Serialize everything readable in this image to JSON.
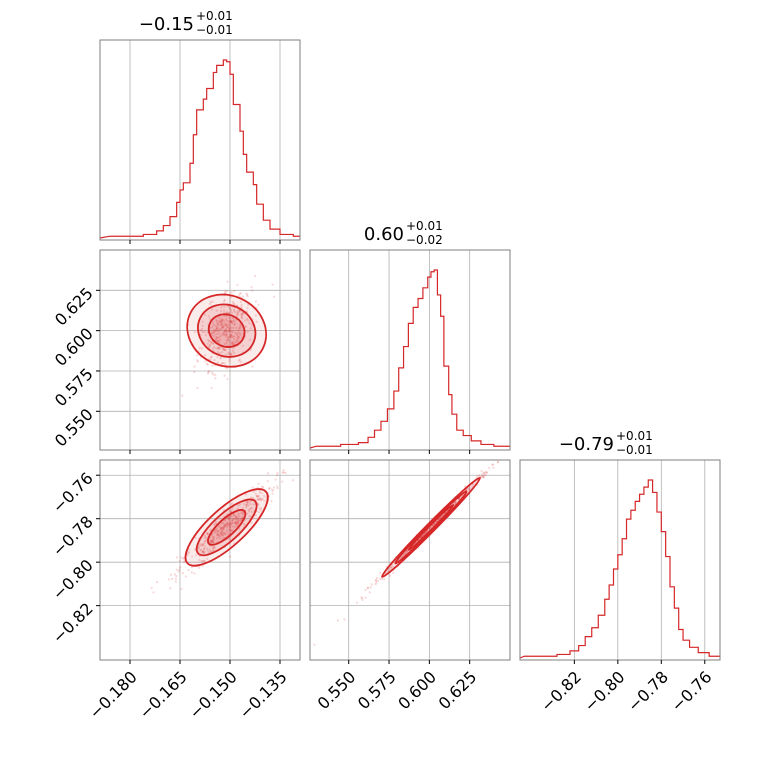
{
  "chart_data": {
    "type": "corner",
    "color": "#d62728",
    "parameters": [
      {
        "title": {
          "median": "−0.15",
          "upper": "+0.01",
          "lower": "−0.01"
        },
        "range": [
          -0.189,
          -0.129
        ],
        "ticks": [
          {
            "v": -0.18,
            "label": "−0.180"
          },
          {
            "v": -0.165,
            "label": "−0.165"
          },
          {
            "v": -0.15,
            "label": "−0.150"
          },
          {
            "v": -0.135,
            "label": "−0.135"
          }
        ],
        "hist": [
          {
            "x": -0.186,
            "y": 0.01
          },
          {
            "x": -0.18,
            "y": 0.01
          },
          {
            "x": -0.176,
            "y": 0.02
          },
          {
            "x": -0.172,
            "y": 0.04
          },
          {
            "x": -0.17,
            "y": 0.07
          },
          {
            "x": -0.168,
            "y": 0.12
          },
          {
            "x": -0.166,
            "y": 0.2
          },
          {
            "x": -0.165,
            "y": 0.27
          },
          {
            "x": -0.164,
            "y": 0.31
          },
          {
            "x": -0.162,
            "y": 0.42
          },
          {
            "x": -0.161,
            "y": 0.58
          },
          {
            "x": -0.16,
            "y": 0.72
          },
          {
            "x": -0.158,
            "y": 0.78
          },
          {
            "x": -0.157,
            "y": 0.84
          },
          {
            "x": -0.155,
            "y": 0.93
          },
          {
            "x": -0.154,
            "y": 0.97
          },
          {
            "x": -0.152,
            "y": 1.0
          },
          {
            "x": -0.151,
            "y": 0.99
          },
          {
            "x": -0.15,
            "y": 0.92
          },
          {
            "x": -0.149,
            "y": 0.75
          },
          {
            "x": -0.147,
            "y": 0.6
          },
          {
            "x": -0.146,
            "y": 0.47
          },
          {
            "x": -0.145,
            "y": 0.37
          },
          {
            "x": -0.143,
            "y": 0.3
          },
          {
            "x": -0.142,
            "y": 0.19
          },
          {
            "x": -0.14,
            "y": 0.1
          },
          {
            "x": -0.138,
            "y": 0.05
          },
          {
            "x": -0.135,
            "y": 0.02
          },
          {
            "x": -0.131,
            "y": 0.01
          }
        ]
      },
      {
        "title": {
          "median": "0.60",
          "upper": "+0.01",
          "lower": "−0.02"
        },
        "range": [
          0.526,
          0.65
        ],
        "ticks": [
          {
            "v": 0.55,
            "label": "0.550"
          },
          {
            "v": 0.575,
            "label": "0.575"
          },
          {
            "v": 0.6,
            "label": "0.600"
          },
          {
            "v": 0.625,
            "label": "0.625"
          }
        ],
        "hist": [
          {
            "x": 0.53,
            "y": 0.01
          },
          {
            "x": 0.545,
            "y": 0.02
          },
          {
            "x": 0.556,
            "y": 0.03
          },
          {
            "x": 0.562,
            "y": 0.06
          },
          {
            "x": 0.566,
            "y": 0.1
          },
          {
            "x": 0.57,
            "y": 0.15
          },
          {
            "x": 0.574,
            "y": 0.22
          },
          {
            "x": 0.578,
            "y": 0.32
          },
          {
            "x": 0.581,
            "y": 0.45
          },
          {
            "x": 0.584,
            "y": 0.57
          },
          {
            "x": 0.587,
            "y": 0.7
          },
          {
            "x": 0.59,
            "y": 0.79
          },
          {
            "x": 0.593,
            "y": 0.84
          },
          {
            "x": 0.596,
            "y": 0.9
          },
          {
            "x": 0.599,
            "y": 0.96
          },
          {
            "x": 0.601,
            "y": 0.99
          },
          {
            "x": 0.603,
            "y": 1.0
          },
          {
            "x": 0.605,
            "y": 0.86
          },
          {
            "x": 0.607,
            "y": 0.74
          },
          {
            "x": 0.609,
            "y": 0.46
          },
          {
            "x": 0.612,
            "y": 0.3
          },
          {
            "x": 0.614,
            "y": 0.19
          },
          {
            "x": 0.617,
            "y": 0.1
          },
          {
            "x": 0.621,
            "y": 0.07
          },
          {
            "x": 0.626,
            "y": 0.04
          },
          {
            "x": 0.632,
            "y": 0.02
          },
          {
            "x": 0.64,
            "y": 0.01
          }
        ]
      },
      {
        "title": {
          "median": "−0.79",
          "upper": "+0.01",
          "lower": "−0.01"
        },
        "range": [
          -0.845,
          -0.753
        ],
        "ticks": [
          {
            "v": -0.82,
            "label": "−0.82"
          },
          {
            "v": -0.8,
            "label": "−0.80"
          },
          {
            "v": -0.78,
            "label": "−0.78"
          },
          {
            "v": -0.76,
            "label": "−0.76"
          }
        ],
        "hist": [
          {
            "x": -0.843,
            "y": 0.01
          },
          {
            "x": -0.835,
            "y": 0.01
          },
          {
            "x": -0.828,
            "y": 0.02
          },
          {
            "x": -0.822,
            "y": 0.04
          },
          {
            "x": -0.818,
            "y": 0.07
          },
          {
            "x": -0.815,
            "y": 0.12
          },
          {
            "x": -0.812,
            "y": 0.17
          },
          {
            "x": -0.809,
            "y": 0.24
          },
          {
            "x": -0.806,
            "y": 0.33
          },
          {
            "x": -0.804,
            "y": 0.41
          },
          {
            "x": -0.802,
            "y": 0.5
          },
          {
            "x": -0.8,
            "y": 0.58
          },
          {
            "x": -0.798,
            "y": 0.67
          },
          {
            "x": -0.796,
            "y": 0.78
          },
          {
            "x": -0.794,
            "y": 0.83
          },
          {
            "x": -0.792,
            "y": 0.88
          },
          {
            "x": -0.79,
            "y": 0.92
          },
          {
            "x": -0.788,
            "y": 0.96
          },
          {
            "x": -0.786,
            "y": 1.0
          },
          {
            "x": -0.784,
            "y": 0.93
          },
          {
            "x": -0.782,
            "y": 0.82
          },
          {
            "x": -0.78,
            "y": 0.71
          },
          {
            "x": -0.778,
            "y": 0.57
          },
          {
            "x": -0.776,
            "y": 0.4
          },
          {
            "x": -0.774,
            "y": 0.28
          },
          {
            "x": -0.772,
            "y": 0.16
          },
          {
            "x": -0.77,
            "y": 0.1
          },
          {
            "x": -0.767,
            "y": 0.06
          },
          {
            "x": -0.763,
            "y": 0.03
          },
          {
            "x": -0.758,
            "y": 0.01
          }
        ]
      }
    ],
    "pairs": [
      {
        "x_param": 0,
        "y_param": 1,
        "center": [
          -0.151,
          0.6
        ],
        "slope": 4.5,
        "spread_minor": 0.004,
        "spread_major": 0.008
      },
      {
        "x_param": 0,
        "y_param": 2,
        "center": [
          -0.151,
          -0.784
        ],
        "slope": 1.4,
        "spread_minor": 0.002,
        "spread_major": 0.008
      },
      {
        "x_param": 1,
        "y_param": 2,
        "center": [
          0.601,
          -0.784
        ],
        "slope": 0.75,
        "spread_minor": 0.0007,
        "spread_major": 0.015
      }
    ],
    "grid": true
  }
}
